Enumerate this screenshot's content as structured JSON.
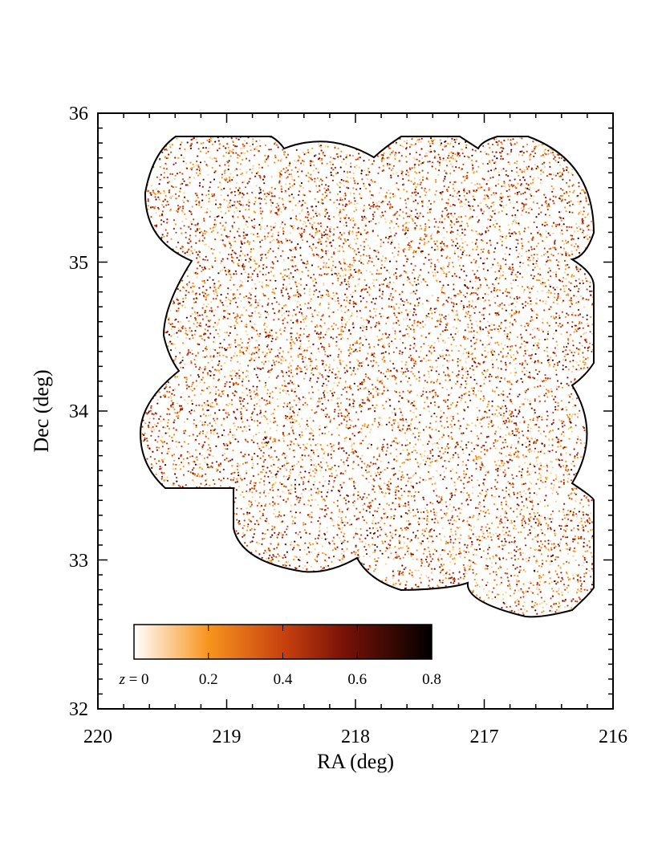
{
  "chart_data": {
    "type": "scatter",
    "title": "",
    "xlabel": "RA (deg)",
    "ylabel": "Dec (deg)",
    "xlim": [
      220,
      216
    ],
    "ylim": [
      32,
      36
    ],
    "x_reversed": true,
    "grid": false,
    "x_ticks": [
      "220",
      "219",
      "218",
      "217",
      "216"
    ],
    "y_ticks": [
      "32",
      "33",
      "34",
      "35",
      "36"
    ],
    "footprint_outline_color": "#000000",
    "point_colormap": [
      "#ffffff",
      "#fbcf8f",
      "#f7941d",
      "#c8420f",
      "#8c1509",
      "#3a0504",
      "#000000"
    ],
    "point_count_approx": 12000,
    "colorbar": {
      "label_prefix": "z",
      "min_label": "z = 0",
      "tick_labels": [
        "0.2",
        "0.4",
        "0.6",
        "0.8"
      ],
      "range": [
        0,
        0.8
      ],
      "position": "bottom-left"
    }
  }
}
